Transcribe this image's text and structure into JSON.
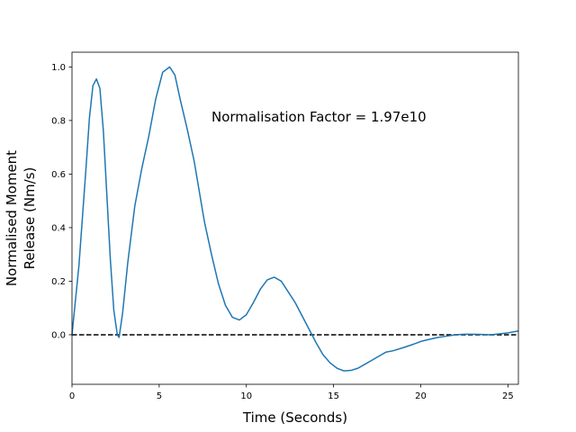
{
  "chart_data": {
    "type": "line",
    "title": "",
    "xlabel": "Time (Seconds)",
    "ylabel_lines": [
      "Normalised Moment",
      "Release (Nm/s)"
    ],
    "xlim": [
      0,
      25.6
    ],
    "ylim": [
      -0.185,
      1.055
    ],
    "xticks": [
      0,
      5,
      10,
      15,
      20,
      25
    ],
    "yticks": [
      0.0,
      0.2,
      0.4,
      0.6,
      0.8,
      1.0
    ],
    "ytick_labels": [
      "0.0",
      "0.2",
      "0.4",
      "0.6",
      "0.8",
      "1.0"
    ],
    "grid": false,
    "annotation": {
      "text": "Normalisation Factor = 1.97e10",
      "x": 8.0,
      "y": 0.81
    },
    "reference_line": {
      "y": 0.0,
      "style": "dashed",
      "color": "#000000"
    },
    "series": [
      {
        "color": "#1f77b4",
        "x": [
          0,
          0.4,
          0.8,
          1.0,
          1.2,
          1.4,
          1.6,
          1.8,
          2.0,
          2.2,
          2.4,
          2.6,
          2.7,
          2.9,
          3.2,
          3.6,
          4.0,
          4.4,
          4.8,
          5.2,
          5.6,
          5.9,
          6.2,
          6.6,
          7.0,
          7.6,
          8.0,
          8.4,
          8.8,
          9.2,
          9.6,
          10.0,
          10.4,
          10.8,
          11.2,
          11.6,
          12.0,
          12.4,
          12.8,
          13.2,
          13.6,
          14.0,
          14.4,
          14.8,
          15.2,
          15.6,
          16.0,
          16.4,
          16.8,
          17.2,
          17.6,
          18.0,
          18.4,
          19.0,
          19.6,
          20.0,
          20.5,
          21.0,
          21.5,
          22.0,
          22.5,
          23.0,
          23.5,
          24.0,
          24.5,
          25.0,
          25.6
        ],
        "y": [
          0.0,
          0.26,
          0.62,
          0.81,
          0.93,
          0.955,
          0.92,
          0.76,
          0.52,
          0.28,
          0.09,
          0.0,
          -0.01,
          0.08,
          0.27,
          0.48,
          0.62,
          0.74,
          0.88,
          0.98,
          1.0,
          0.97,
          0.88,
          0.77,
          0.65,
          0.42,
          0.3,
          0.19,
          0.11,
          0.065,
          0.055,
          0.075,
          0.12,
          0.17,
          0.205,
          0.215,
          0.2,
          0.16,
          0.12,
          0.07,
          0.02,
          -0.03,
          -0.075,
          -0.105,
          -0.125,
          -0.135,
          -0.133,
          -0.125,
          -0.11,
          -0.095,
          -0.08,
          -0.065,
          -0.06,
          -0.048,
          -0.035,
          -0.025,
          -0.017,
          -0.01,
          -0.005,
          0.0,
          0.002,
          0.002,
          0.001,
          0.0,
          0.003,
          0.007,
          0.014
        ]
      }
    ]
  }
}
